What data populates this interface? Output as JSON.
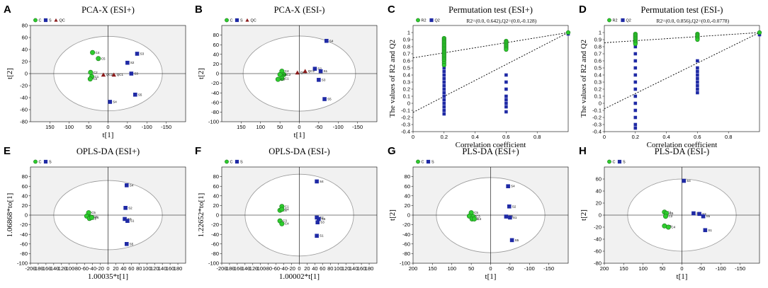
{
  "colors": {
    "group_c": "#2ecc2e",
    "group_c_stroke": "#1a7a1a",
    "group_s": "#1f2aa5",
    "qc": "#8b1a1a",
    "plot_bg": "#f1f1f1",
    "ellipse": "#9a9a9a"
  },
  "chart_data": [
    {
      "id": "A",
      "letter": "A",
      "type": "scatter",
      "title": "PCA-X (ESI+)",
      "xlabel": "t[1]",
      "ylabel": "t[2]",
      "xlim": [
        -200,
        200
      ],
      "ylim": [
        -80,
        80
      ],
      "x_reversed": true,
      "xticks": [
        150,
        100,
        50,
        0,
        -50,
        -100,
        -150
      ],
      "yticks": [
        -80,
        -60,
        -40,
        -20,
        0,
        20,
        40,
        60,
        80
      ],
      "ellipse": [
        140,
        62
      ],
      "legend": [
        {
          "symbol": "circle",
          "label": "C"
        },
        {
          "symbol": "square",
          "label": "S"
        },
        {
          "symbol": "triangle",
          "label": "QC"
        }
      ],
      "points": [
        {
          "g": "C",
          "x": 40,
          "y": 35,
          "label": "C4"
        },
        {
          "g": "C",
          "x": 25,
          "y": 25,
          "label": "C5"
        },
        {
          "g": "C",
          "x": 45,
          "y": 2,
          "label": "C2"
        },
        {
          "g": "C",
          "x": 42,
          "y": -5,
          "label": "C1"
        },
        {
          "g": "C",
          "x": 46,
          "y": -9,
          "label": "C3"
        },
        {
          "g": "S",
          "x": -75,
          "y": 33,
          "label": "S3"
        },
        {
          "g": "S",
          "x": -50,
          "y": 18,
          "label": "S2"
        },
        {
          "g": "S",
          "x": -60,
          "y": 0,
          "label": "S3"
        },
        {
          "g": "S",
          "x": -70,
          "y": -35,
          "label": "S5"
        },
        {
          "g": "S",
          "x": -5,
          "y": -47,
          "label": "S4"
        },
        {
          "g": "QC",
          "x": -15,
          "y": -2,
          "label": "QC1"
        },
        {
          "g": "QC",
          "x": 12,
          "y": -2,
          "label": "QC2"
        }
      ]
    },
    {
      "id": "B",
      "letter": "B",
      "type": "scatter",
      "title": "PCA-X (ESI-)",
      "xlabel": "t[1]",
      "ylabel": "t[2]",
      "xlim": [
        -200,
        200
      ],
      "ylim": [
        -100,
        100
      ],
      "x_reversed": true,
      "xticks": [
        150,
        100,
        50,
        0,
        -50,
        -100,
        -150
      ],
      "yticks": [
        -100,
        -80,
        -60,
        -40,
        -20,
        0,
        20,
        40,
        60,
        80
      ],
      "ellipse": [
        145,
        78
      ],
      "legend": [
        {
          "symbol": "circle",
          "label": "C"
        },
        {
          "symbol": "square",
          "label": "S"
        },
        {
          "symbol": "triangle",
          "label": "QC"
        }
      ],
      "points": [
        {
          "g": "C",
          "x": 45,
          "y": 5,
          "label": "C4"
        },
        {
          "g": "C",
          "x": 40,
          "y": -2,
          "label": "C2"
        },
        {
          "g": "C",
          "x": 50,
          "y": -2,
          "label": "C5"
        },
        {
          "g": "C",
          "x": 45,
          "y": -10,
          "label": "C1"
        },
        {
          "g": "C",
          "x": 55,
          "y": -12,
          "label": "C3"
        },
        {
          "g": "S",
          "x": -70,
          "y": 68,
          "label": "S4"
        },
        {
          "g": "S",
          "x": -40,
          "y": 10,
          "label": "S2"
        },
        {
          "g": "S",
          "x": -55,
          "y": 5,
          "label": "S1"
        },
        {
          "g": "S",
          "x": -50,
          "y": -13,
          "label": "S3"
        },
        {
          "g": "S",
          "x": -65,
          "y": -53,
          "label": "S5"
        },
        {
          "g": "QC",
          "x": 5,
          "y": 2,
          "label": "QC1"
        },
        {
          "g": "QC",
          "x": -15,
          "y": 5,
          "label": "QC2"
        }
      ]
    },
    {
      "id": "C",
      "letter": "C",
      "type": "scatter",
      "title": "Permutation test (ESI+)",
      "annotation": "R2=(0.0, 0.642),Q2=(0.0,-0.128)",
      "xlabel": "Correlation coefficient",
      "ylabel": "The values of R2 and Q2",
      "xlim": [
        0,
        1
      ],
      "ylim": [
        -0.4,
        1.1
      ],
      "xticks": [
        0,
        0.2,
        0.4,
        0.6,
        0.8
      ],
      "yticks": [
        -0.4,
        -0.3,
        -0.2,
        -0.1,
        0,
        0.1,
        0.2,
        0.3,
        0.4,
        0.5,
        0.6,
        0.7,
        0.8,
        0.9,
        1
      ],
      "legend": [
        {
          "symbol": "circle",
          "label": "R2"
        },
        {
          "symbol": "square",
          "label": "Q2"
        }
      ],
      "r2_line": [
        0.642,
        1.0
      ],
      "q2_line": [
        -0.128,
        1.0
      ],
      "r2_points": [
        {
          "x": 0.2,
          "y": 0.92
        },
        {
          "x": 0.2,
          "y": 0.9
        },
        {
          "x": 0.2,
          "y": 0.88
        },
        {
          "x": 0.2,
          "y": 0.86
        },
        {
          "x": 0.2,
          "y": 0.84
        },
        {
          "x": 0.2,
          "y": 0.82
        },
        {
          "x": 0.2,
          "y": 0.8
        },
        {
          "x": 0.2,
          "y": 0.78
        },
        {
          "x": 0.2,
          "y": 0.76
        },
        {
          "x": 0.2,
          "y": 0.74
        },
        {
          "x": 0.2,
          "y": 0.72
        },
        {
          "x": 0.2,
          "y": 0.7
        },
        {
          "x": 0.2,
          "y": 0.68
        },
        {
          "x": 0.2,
          "y": 0.66
        },
        {
          "x": 0.2,
          "y": 0.64
        },
        {
          "x": 0.2,
          "y": 0.62
        },
        {
          "x": 0.2,
          "y": 0.6
        },
        {
          "x": 0.2,
          "y": 0.57
        },
        {
          "x": 0.2,
          "y": 0.54
        },
        {
          "x": 0.6,
          "y": 0.88
        },
        {
          "x": 0.6,
          "y": 0.86
        },
        {
          "x": 0.6,
          "y": 0.84
        },
        {
          "x": 0.6,
          "y": 0.82
        },
        {
          "x": 0.6,
          "y": 0.8
        },
        {
          "x": 0.6,
          "y": 0.78
        },
        {
          "x": 0.6,
          "y": 0.76
        },
        {
          "x": 1.0,
          "y": 1.0
        }
      ],
      "q2_points": [
        {
          "x": 0.2,
          "y": 0.5
        },
        {
          "x": 0.2,
          "y": 0.45
        },
        {
          "x": 0.2,
          "y": 0.4
        },
        {
          "x": 0.2,
          "y": 0.35
        },
        {
          "x": 0.2,
          "y": 0.3
        },
        {
          "x": 0.2,
          "y": 0.25
        },
        {
          "x": 0.2,
          "y": 0.2
        },
        {
          "x": 0.2,
          "y": 0.15
        },
        {
          "x": 0.2,
          "y": 0.1
        },
        {
          "x": 0.2,
          "y": 0.05
        },
        {
          "x": 0.2,
          "y": 0.0
        },
        {
          "x": 0.2,
          "y": -0.05
        },
        {
          "x": 0.2,
          "y": -0.1
        },
        {
          "x": 0.2,
          "y": -0.15
        },
        {
          "x": 0.6,
          "y": 0.4
        },
        {
          "x": 0.6,
          "y": 0.3
        },
        {
          "x": 0.6,
          "y": 0.2
        },
        {
          "x": 0.6,
          "y": 0.1
        },
        {
          "x": 0.6,
          "y": 0.05
        },
        {
          "x": 0.6,
          "y": 0.0
        },
        {
          "x": 0.6,
          "y": -0.05
        },
        {
          "x": 0.6,
          "y": -0.12
        },
        {
          "x": 1.0,
          "y": 0.98
        }
      ]
    },
    {
      "id": "D",
      "letter": "D",
      "type": "scatter",
      "title": "Permutation test (ESI-)",
      "annotation": "R2=(0.0, 0.856),Q2=(0.0,-0.0778)",
      "xlabel": "Correlation coefficient",
      "ylabel": "The values of R2 and Q2",
      "xlim": [
        0,
        1
      ],
      "ylim": [
        -0.4,
        1.1
      ],
      "xticks": [
        0,
        0.2,
        0.4,
        0.6,
        0.8
      ],
      "yticks": [
        -0.4,
        -0.3,
        -0.2,
        -0.1,
        0,
        0.1,
        0.2,
        0.3,
        0.4,
        0.5,
        0.6,
        0.7,
        0.8,
        0.9,
        1
      ],
      "legend": [
        {
          "symbol": "circle",
          "label": "R2"
        },
        {
          "symbol": "square",
          "label": "Q2"
        }
      ],
      "r2_line": [
        0.856,
        1.0
      ],
      "q2_line": [
        -0.0778,
        1.0
      ],
      "r2_points": [
        {
          "x": 0.2,
          "y": 0.98
        },
        {
          "x": 0.2,
          "y": 0.96
        },
        {
          "x": 0.2,
          "y": 0.94
        },
        {
          "x": 0.2,
          "y": 0.92
        },
        {
          "x": 0.2,
          "y": 0.9
        },
        {
          "x": 0.2,
          "y": 0.88
        },
        {
          "x": 0.2,
          "y": 0.86
        },
        {
          "x": 0.2,
          "y": 0.84
        },
        {
          "x": 0.6,
          "y": 0.98
        },
        {
          "x": 0.6,
          "y": 0.96
        },
        {
          "x": 0.6,
          "y": 0.94
        },
        {
          "x": 0.6,
          "y": 0.92
        },
        {
          "x": 0.6,
          "y": 0.9
        },
        {
          "x": 1.0,
          "y": 1.0
        }
      ],
      "q2_points": [
        {
          "x": 0.2,
          "y": 0.8
        },
        {
          "x": 0.2,
          "y": 0.7
        },
        {
          "x": 0.2,
          "y": 0.6
        },
        {
          "x": 0.2,
          "y": 0.5
        },
        {
          "x": 0.2,
          "y": 0.4
        },
        {
          "x": 0.2,
          "y": 0.3
        },
        {
          "x": 0.2,
          "y": 0.2
        },
        {
          "x": 0.2,
          "y": 0.1
        },
        {
          "x": 0.2,
          "y": 0.0
        },
        {
          "x": 0.2,
          "y": -0.1
        },
        {
          "x": 0.2,
          "y": -0.2
        },
        {
          "x": 0.2,
          "y": -0.3
        },
        {
          "x": 0.2,
          "y": -0.35
        },
        {
          "x": 0.6,
          "y": 0.6
        },
        {
          "x": 0.6,
          "y": 0.5
        },
        {
          "x": 0.6,
          "y": 0.45
        },
        {
          "x": 0.6,
          "y": 0.4
        },
        {
          "x": 0.6,
          "y": 0.35
        },
        {
          "x": 0.6,
          "y": 0.3
        },
        {
          "x": 0.6,
          "y": 0.25
        },
        {
          "x": 0.6,
          "y": 0.2
        },
        {
          "x": 0.6,
          "y": 0.15
        },
        {
          "x": 1.0,
          "y": 0.97
        }
      ]
    },
    {
      "id": "E",
      "letter": "E",
      "type": "scatter",
      "title": "OPLS-DA (ESI+)",
      "xlabel": "1.00035*t[1]",
      "ylabel": "1.06868*to[1]",
      "xlim": [
        -200,
        200
      ],
      "ylim": [
        -100,
        100
      ],
      "x_reversed": false,
      "xticks": [
        -200,
        -180,
        -160,
        -140,
        -120,
        -100,
        -80,
        -60,
        -40,
        -20,
        0,
        20,
        40,
        60,
        80,
        100,
        120,
        140,
        160,
        180
      ],
      "yticks": [
        -100,
        -80,
        -60,
        -40,
        -20,
        0,
        20,
        40,
        60,
        80
      ],
      "ellipse": [
        140,
        72
      ],
      "legend": [
        {
          "symbol": "circle",
          "label": "C"
        },
        {
          "symbol": "square",
          "label": "S"
        }
      ],
      "points": [
        {
          "g": "C",
          "x": -50,
          "y": 5,
          "label": "C5"
        },
        {
          "g": "C",
          "x": -55,
          "y": -2,
          "label": "C2"
        },
        {
          "g": "C",
          "x": -45,
          "y": -4,
          "label": "C3"
        },
        {
          "g": "C",
          "x": -48,
          "y": -7,
          "label": "C1"
        },
        {
          "g": "C",
          "x": -42,
          "y": -5,
          "label": "C4"
        },
        {
          "g": "S",
          "x": 48,
          "y": 62,
          "label": "S4"
        },
        {
          "g": "S",
          "x": 45,
          "y": 15,
          "label": "S2"
        },
        {
          "g": "S",
          "x": 43,
          "y": -8,
          "label": "S3"
        },
        {
          "g": "S",
          "x": 50,
          "y": -12,
          "label": "S1"
        },
        {
          "g": "S",
          "x": 48,
          "y": -60,
          "label": "S5"
        }
      ]
    },
    {
      "id": "F",
      "letter": "F",
      "type": "scatter",
      "title": "OPLS-DA (ESI-)",
      "xlabel": "1.00002*t[1]",
      "ylabel": "1.22652*to[1]",
      "xlim": [
        -200,
        200
      ],
      "ylim": [
        -100,
        100
      ],
      "x_reversed": false,
      "xticks": [
        -200,
        -180,
        -160,
        -140,
        -120,
        -100,
        -80,
        -60,
        -40,
        -20,
        0,
        20,
        40,
        60,
        80,
        100,
        120,
        140,
        160,
        180
      ],
      "yticks": [
        -100,
        -80,
        -60,
        -40,
        -20,
        0,
        20,
        40,
        60,
        80
      ],
      "ellipse": [
        140,
        85
      ],
      "legend": [
        {
          "symbol": "circle",
          "label": "C"
        },
        {
          "symbol": "square",
          "label": "S"
        }
      ],
      "points": [
        {
          "g": "C",
          "x": -45,
          "y": 18,
          "label": "C1"
        },
        {
          "g": "C",
          "x": -50,
          "y": 10,
          "label": "C2"
        },
        {
          "g": "C",
          "x": -45,
          "y": 12,
          "label": "C4"
        },
        {
          "g": "C",
          "x": -50,
          "y": -12,
          "label": "C3"
        },
        {
          "g": "C",
          "x": -45,
          "y": -18,
          "label": "C4"
        },
        {
          "g": "S",
          "x": 45,
          "y": 70,
          "label": "S4"
        },
        {
          "g": "S",
          "x": 45,
          "y": -5,
          "label": "S2"
        },
        {
          "g": "S",
          "x": 50,
          "y": -8,
          "label": "S5"
        },
        {
          "g": "S",
          "x": 47,
          "y": -15,
          "label": "S3"
        },
        {
          "g": "S",
          "x": 45,
          "y": -43,
          "label": "S1"
        }
      ]
    },
    {
      "id": "G",
      "letter": "G",
      "type": "scatter",
      "title": "PLS-DA (ESI+)",
      "xlabel": "t[1]",
      "ylabel": "t[2]",
      "xlim": [
        -200,
        200
      ],
      "ylim": [
        -100,
        100
      ],
      "x_reversed": true,
      "xticks": [
        200,
        150,
        100,
        50,
        0,
        -50,
        -100,
        -150
      ],
      "yticks": [
        -100,
        -80,
        -60,
        -40,
        -20,
        0,
        20,
        40,
        60,
        80
      ],
      "ellipse": [
        140,
        78
      ],
      "legend": [
        {
          "symbol": "circle",
          "label": "C"
        },
        {
          "symbol": "square",
          "label": "S"
        }
      ],
      "points": [
        {
          "g": "C",
          "x": 50,
          "y": 5,
          "label": "C5"
        },
        {
          "g": "C",
          "x": 55,
          "y": -2,
          "label": "C2"
        },
        {
          "g": "C",
          "x": 45,
          "y": -3,
          "label": "C3"
        },
        {
          "g": "C",
          "x": 48,
          "y": -8,
          "label": "C1"
        },
        {
          "g": "C",
          "x": 42,
          "y": -8,
          "label": "C4"
        },
        {
          "g": "S",
          "x": -45,
          "y": 60,
          "label": "S4"
        },
        {
          "g": "S",
          "x": -48,
          "y": 18,
          "label": "S2"
        },
        {
          "g": "S",
          "x": -40,
          "y": -3,
          "label": "S3"
        },
        {
          "g": "S",
          "x": -50,
          "y": -5,
          "label": "S1"
        },
        {
          "g": "S",
          "x": -55,
          "y": -52,
          "label": "S5"
        }
      ]
    },
    {
      "id": "H",
      "letter": "H",
      "type": "scatter",
      "title": "PLS-DA (ESI-)",
      "xlabel": "t[1]",
      "ylabel": "t[2]",
      "xlim": [
        -200,
        200
      ],
      "ylim": [
        -80,
        80
      ],
      "x_reversed": true,
      "xticks": [
        200,
        150,
        100,
        50,
        0,
        -50,
        -100,
        -150
      ],
      "yticks": [
        -80,
        -60,
        -40,
        -20,
        0,
        20,
        40,
        60
      ],
      "ellipse": [
        140,
        60
      ],
      "legend": [
        {
          "symbol": "circle",
          "label": "C"
        },
        {
          "symbol": "square",
          "label": "S"
        }
      ],
      "points": [
        {
          "g": "C",
          "x": 45,
          "y": 5,
          "label": "C1"
        },
        {
          "g": "C",
          "x": 40,
          "y": 3,
          "label": "C5"
        },
        {
          "g": "C",
          "x": 42,
          "y": -2,
          "label": "C2"
        },
        {
          "g": "C",
          "x": 45,
          "y": -18,
          "label": "C3"
        },
        {
          "g": "C",
          "x": 35,
          "y": -20,
          "label": "C4"
        },
        {
          "g": "S",
          "x": -5,
          "y": 57,
          "label": "S4"
        },
        {
          "g": "S",
          "x": -30,
          "y": 3,
          "label": "S2"
        },
        {
          "g": "S",
          "x": -45,
          "y": 2,
          "label": "S3"
        },
        {
          "g": "S",
          "x": -55,
          "y": -2,
          "label": "S5"
        },
        {
          "g": "S",
          "x": -60,
          "y": -25,
          "label": "S1"
        }
      ]
    }
  ]
}
